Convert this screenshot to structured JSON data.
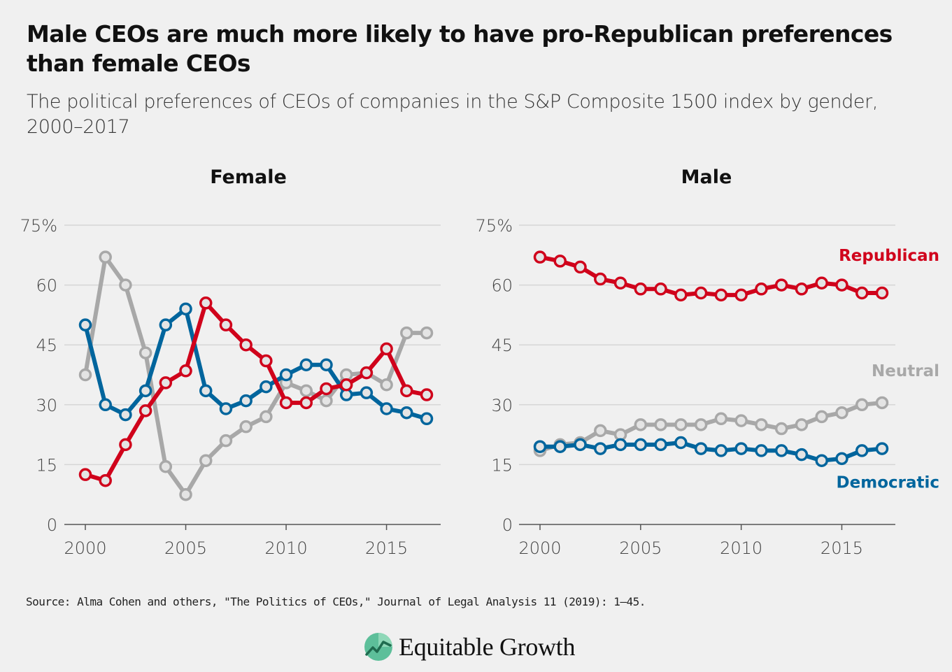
{
  "title": "Male CEOs are much more likely to have pro-Republican preferences than female CEOs",
  "subtitle": "The political preferences of CEOs of companies in the S&P Composite 1500 index by gender, 2000–2017",
  "source": "Source: Alma Cohen and others, \"The Politics of CEOs,\" Journal of Legal Analysis 11 (2019): 1–45.",
  "logo_text": "Equitable Growth",
  "logo_icon": "equitable-growth-icon",
  "colors": {
    "republican": "#d0021b",
    "democratic": "#00659d",
    "neutral": "#a8a8a8",
    "grid": "#d6d6d6",
    "axis": "#555555"
  },
  "chart_data": [
    {
      "type": "line",
      "title": "Female",
      "x": [
        2000,
        2001,
        2002,
        2003,
        2004,
        2005,
        2006,
        2007,
        2008,
        2009,
        2010,
        2011,
        2012,
        2013,
        2014,
        2015,
        2016,
        2017
      ],
      "xticks": [
        "2000",
        "2005",
        "2010",
        "2015"
      ],
      "ylim": [
        0,
        75
      ],
      "yticks": [
        "75%",
        "60",
        "45",
        "30",
        "15",
        "0"
      ],
      "grid": true,
      "series": [
        {
          "name": "Neutral",
          "key": "neutral",
          "values": [
            37.5,
            67,
            60,
            43,
            14.5,
            7.5,
            16,
            21,
            24.5,
            27,
            35.5,
            33.5,
            31,
            37.5,
            38,
            35,
            48,
            48
          ]
        },
        {
          "name": "Democratic",
          "key": "democratic",
          "values": [
            50,
            30,
            27.5,
            33.5,
            50,
            54,
            33.5,
            29,
            31,
            34.5,
            37.5,
            40,
            40,
            32.5,
            33,
            29,
            28,
            26.5
          ]
        },
        {
          "name": "Republican",
          "key": "republican",
          "values": [
            12.5,
            11,
            20,
            28.5,
            35.5,
            38.5,
            55.5,
            50,
            45,
            41,
            30.5,
            30.5,
            34,
            35,
            38,
            44,
            33.5,
            32.5
          ]
        }
      ]
    },
    {
      "type": "line",
      "title": "Male",
      "x": [
        2000,
        2001,
        2002,
        2003,
        2004,
        2005,
        2006,
        2007,
        2008,
        2009,
        2010,
        2011,
        2012,
        2013,
        2014,
        2015,
        2016,
        2017
      ],
      "xticks": [
        "2000",
        "2005",
        "2010",
        "2015"
      ],
      "ylim": [
        0,
        75
      ],
      "yticks": [
        "75%",
        "60",
        "45",
        "30",
        "15",
        "0"
      ],
      "grid": true,
      "series": [
        {
          "name": "Democratic",
          "key": "democratic",
          "values": [
            19.5,
            19.5,
            20,
            19,
            20,
            20,
            20,
            20.5,
            19,
            18.5,
            19,
            18.5,
            18.5,
            17.5,
            16,
            16.5,
            18.5,
            19
          ]
        },
        {
          "name": "Neutral",
          "key": "neutral",
          "values": [
            18.5,
            20,
            20.5,
            23.5,
            22.5,
            25,
            25,
            25,
            25,
            26.5,
            26,
            25,
            24,
            25,
            27,
            28,
            30,
            30.5
          ]
        },
        {
          "name": "Republican",
          "key": "republican",
          "values": [
            67,
            66,
            64.5,
            61.5,
            60.5,
            59,
            59,
            57.5,
            58,
            57.5,
            57.5,
            59,
            60,
            59,
            60.5,
            60,
            58,
            58
          ]
        }
      ],
      "labels": [
        {
          "text": "Republican",
          "key": "republican"
        },
        {
          "text": "Neutral",
          "key": "neutral"
        },
        {
          "text": "Democratic",
          "key": "democratic"
        }
      ]
    }
  ]
}
